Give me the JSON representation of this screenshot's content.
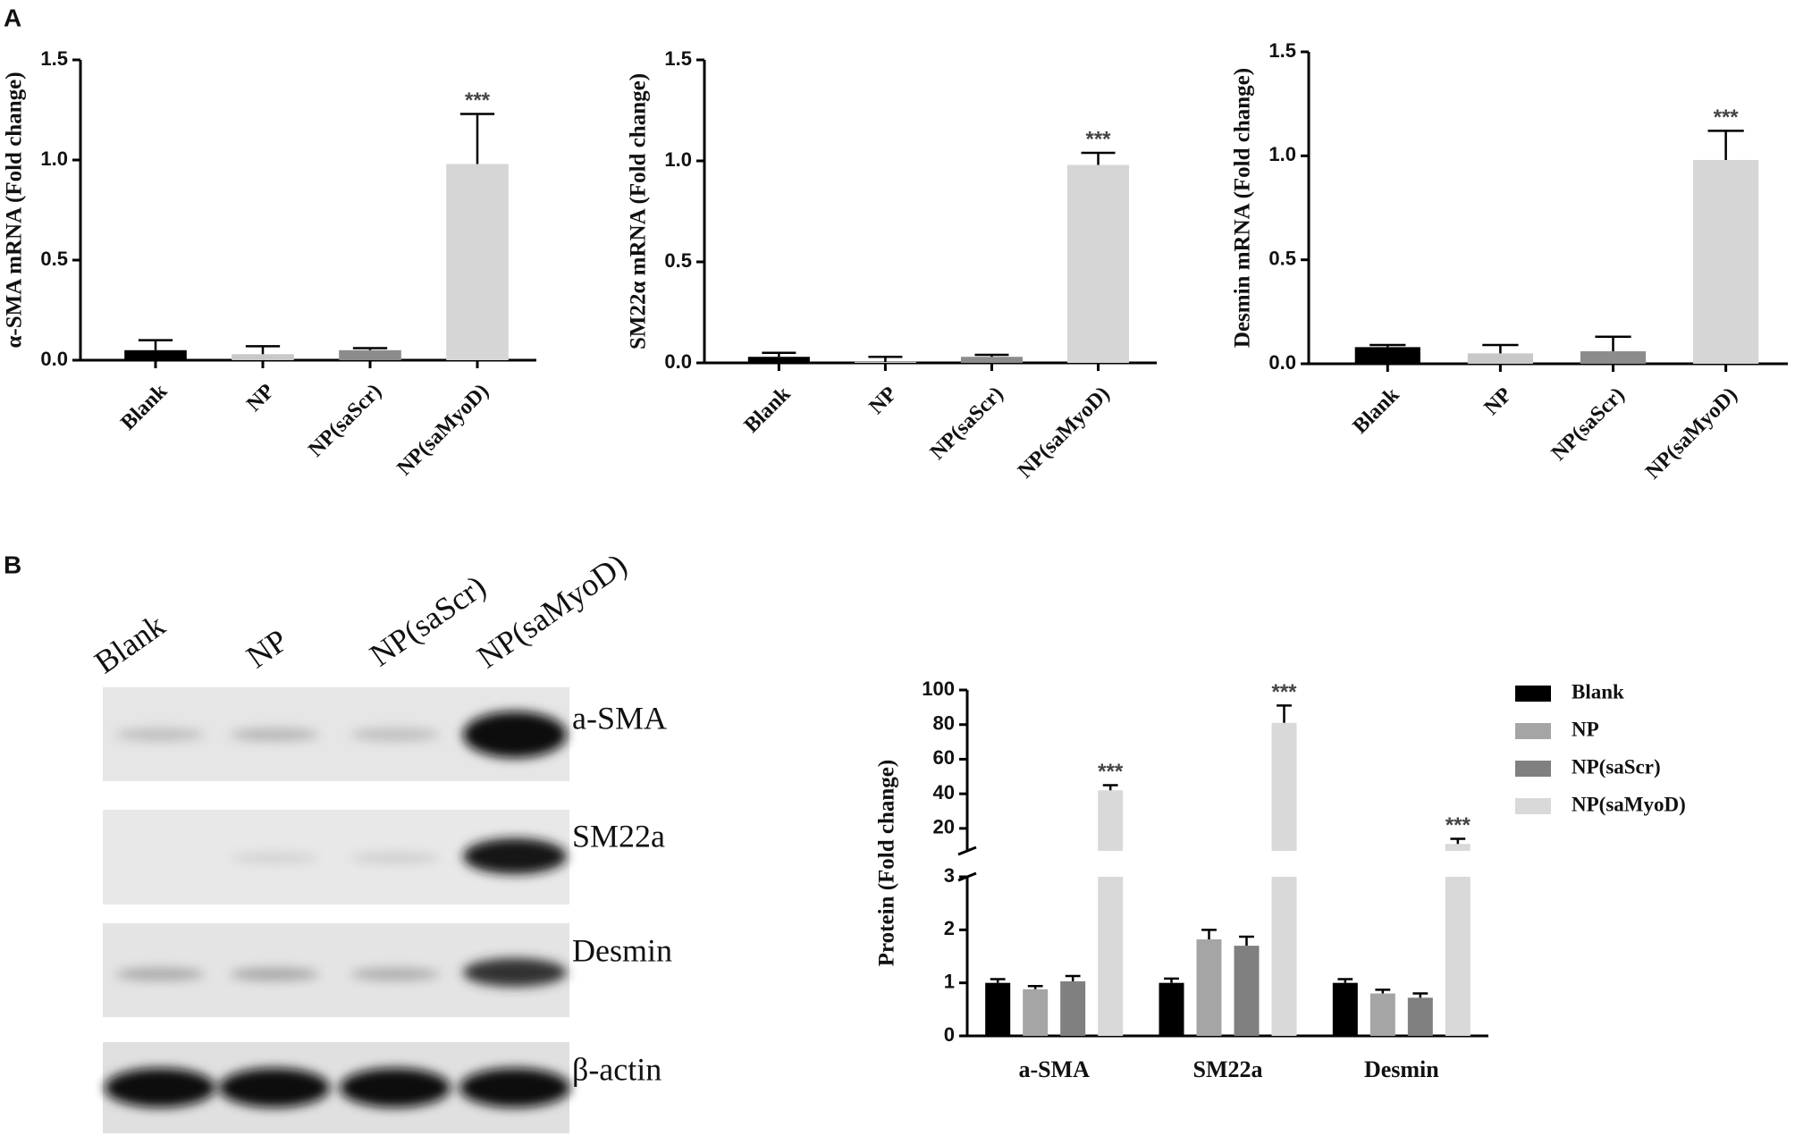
{
  "panels": [
    "A",
    "B"
  ],
  "blot": {
    "lanes": [
      "Blank",
      "NP",
      "NP(saScr)",
      "NP(saMyoD)"
    ],
    "proteins": [
      "a-SMA",
      "SM22a",
      "Desmin",
      "β-actin"
    ]
  },
  "chart_data": [
    {
      "type": "bar",
      "y_label": "α-SMA mRNA (Fold change)",
      "categories": [
        "Blank",
        "NP",
        "NP(saScr)",
        "NP(saMyoD)"
      ],
      "values": [
        0.05,
        0.03,
        0.05,
        0.98
      ],
      "errors": [
        0.05,
        0.04,
        0.01,
        0.25
      ],
      "colors": [
        "#000000",
        "#c8c8c8",
        "#8c8c8c",
        "#d6d6d6"
      ],
      "value_annotations": [
        null,
        null,
        null,
        "***"
      ],
      "ylim": [
        0,
        1.5
      ],
      "yticks": [
        {
          "value": 0,
          "label": "0.0"
        },
        0.5,
        {
          "value": 1,
          "label": "1.0"
        },
        1.5
      ]
    },
    {
      "type": "bar",
      "y_label": "SM22α mRNA (Fold change)",
      "categories": [
        "Blank",
        "NP",
        "NP(saScr)",
        "NP(saMyoD)"
      ],
      "values": [
        0.03,
        0.005,
        0.03,
        0.98
      ],
      "errors": [
        0.02,
        0.025,
        0.01,
        0.06
      ],
      "colors": [
        "#000000",
        "#c8c8c8",
        "#8c8c8c",
        "#d6d6d6"
      ],
      "value_annotations": [
        null,
        null,
        null,
        "***"
      ],
      "ylim": [
        0,
        1.5
      ],
      "yticks": [
        {
          "value": 0,
          "label": "0.0"
        },
        0.5,
        {
          "value": 1,
          "label": "1.0"
        },
        1.5
      ]
    },
    {
      "type": "bar",
      "y_label": "Desmin mRNA (Fold change)",
      "categories": [
        "Blank",
        "NP",
        "NP(saScr)",
        "NP(saMyoD)"
      ],
      "values": [
        0.08,
        0.05,
        0.06,
        0.98
      ],
      "errors": [
        0.01,
        0.04,
        0.07,
        0.14
      ],
      "colors": [
        "#000000",
        "#c8c8c8",
        "#8c8c8c",
        "#d6d6d6"
      ],
      "value_annotations": [
        null,
        null,
        null,
        "***"
      ],
      "ylim": [
        0,
        1.5
      ],
      "yticks": [
        {
          "value": 0,
          "label": "0.0"
        },
        0.5,
        {
          "value": 1,
          "label": "1.0"
        },
        1.5
      ]
    },
    {
      "type": "grouped_bar",
      "y_label": "Protein (Fold change)",
      "categories": [
        "a-SMA",
        "SM22a",
        "Desmin"
      ],
      "series": [
        {
          "name": "Blank",
          "color": "#000000",
          "values": [
            1.0,
            1.0,
            1.0
          ],
          "errors": [
            0.07,
            0.08,
            0.07
          ]
        },
        {
          "name": "NP",
          "color": "#a5a5a5",
          "values": [
            0.88,
            1.82,
            0.8
          ],
          "errors": [
            0.06,
            0.18,
            0.07
          ]
        },
        {
          "name": "NP(saScr)",
          "color": "#808080",
          "values": [
            1.03,
            1.7,
            0.72
          ],
          "errors": [
            0.1,
            0.17,
            0.08
          ]
        },
        {
          "name": "NP(saMyoD)",
          "color": "#d9d9d9",
          "values": [
            42,
            81,
            11
          ],
          "errors": [
            3,
            10,
            3
          ],
          "value_annotations": [
            "***",
            "***",
            "***"
          ]
        }
      ],
      "ylim": [
        0,
        3
      ],
      "yticks": [
        0,
        1,
        2,
        3
      ],
      "ylim_upper": [
        7,
        100
      ],
      "yticks_upper": [
        20,
        40,
        60,
        80,
        100
      ],
      "legend": "right"
    }
  ]
}
